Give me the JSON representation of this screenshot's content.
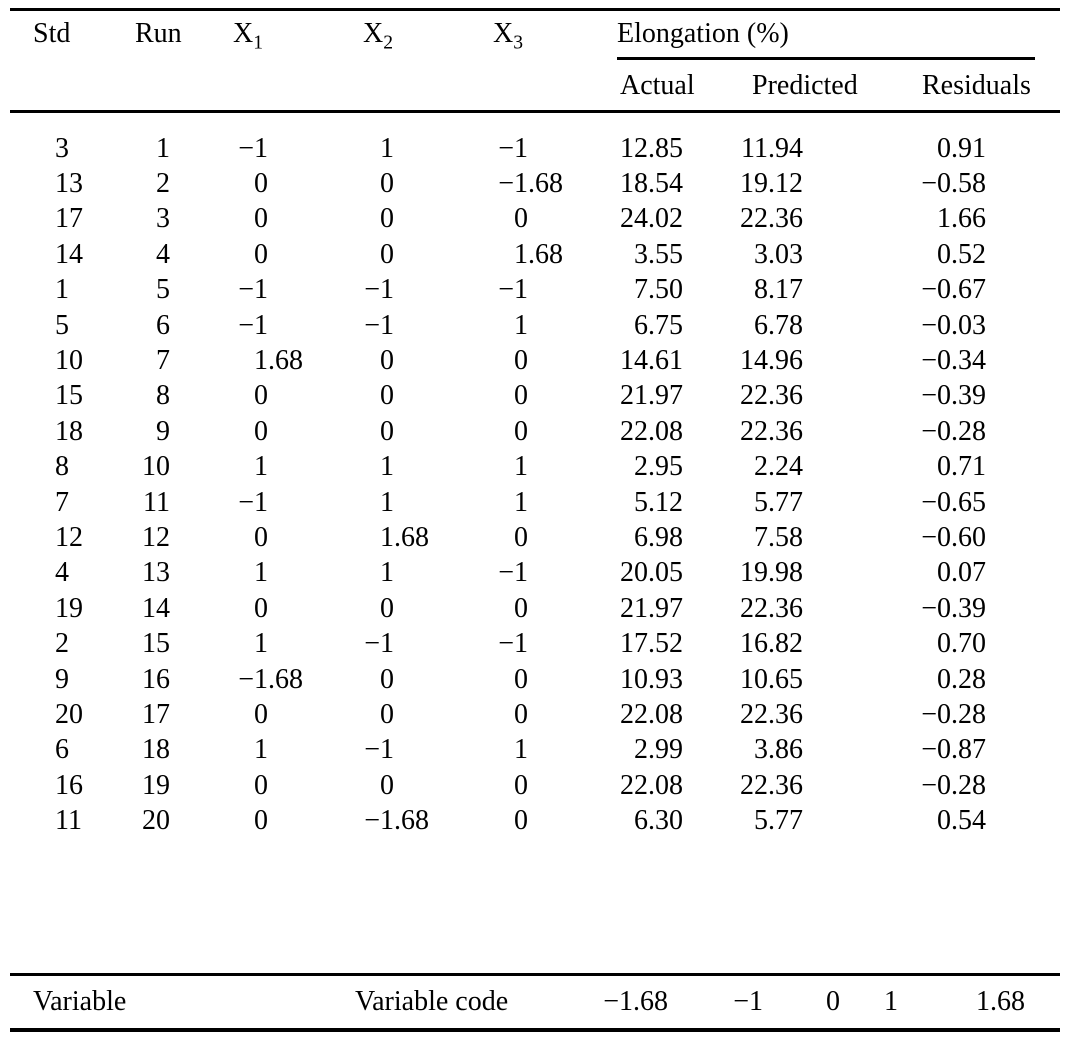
{
  "table": {
    "title_hint": "Central composite design runs with actual, predicted elongation and residuals",
    "headers": {
      "std": "Std",
      "run": "Run",
      "x1": {
        "base": "X",
        "sub": "1"
      },
      "x2": {
        "base": "X",
        "sub": "2"
      },
      "x3": {
        "base": "X",
        "sub": "3"
      },
      "elongation_group": "Elongation (%)",
      "actual": "Actual",
      "predicted": "Predicted",
      "residuals": "Residuals"
    },
    "rows": [
      [
        "3",
        "1",
        "−1",
        "1",
        "−1",
        "12.85",
        "11.94",
        "0.91"
      ],
      [
        "13",
        "2",
        "0",
        "0",
        "−1.68",
        "18.54",
        "19.12",
        "−0.58"
      ],
      [
        "17",
        "3",
        "0",
        "0",
        "0",
        "24.02",
        "22.36",
        "1.66"
      ],
      [
        "14",
        "4",
        "0",
        "0",
        "1.68",
        "3.55",
        "3.03",
        "0.52"
      ],
      [
        "1",
        "5",
        "−1",
        "−1",
        "−1",
        "7.50",
        "8.17",
        "−0.67"
      ],
      [
        "5",
        "6",
        "−1",
        "−1",
        "1",
        "6.75",
        "6.78",
        "−0.03"
      ],
      [
        "10",
        "7",
        "1.68",
        "0",
        "0",
        "14.61",
        "14.96",
        "−0.34"
      ],
      [
        "15",
        "8",
        "0",
        "0",
        "0",
        "21.97",
        "22.36",
        "−0.39"
      ],
      [
        "18",
        "9",
        "0",
        "0",
        "0",
        "22.08",
        "22.36",
        "−0.28"
      ],
      [
        "8",
        "10",
        "1",
        "1",
        "1",
        "2.95",
        "2.24",
        "0.71"
      ],
      [
        "7",
        "11",
        "−1",
        "1",
        "1",
        "5.12",
        "5.77",
        "−0.65"
      ],
      [
        "12",
        "12",
        "0",
        "1.68",
        "0",
        "6.98",
        "7.58",
        "−0.60"
      ],
      [
        "4",
        "13",
        "1",
        "1",
        "−1",
        "20.05",
        "19.98",
        "0.07"
      ],
      [
        "19",
        "14",
        "0",
        "0",
        "0",
        "21.97",
        "22.36",
        "−0.39"
      ],
      [
        "2",
        "15",
        "1",
        "−1",
        "−1",
        "17.52",
        "16.82",
        "0.70"
      ],
      [
        "9",
        "16",
        "−1.68",
        "0",
        "0",
        "10.93",
        "10.65",
        "0.28"
      ],
      [
        "20",
        "17",
        "0",
        "0",
        "0",
        "22.08",
        "22.36",
        "−0.28"
      ],
      [
        "6",
        "18",
        "1",
        "−1",
        "1",
        "2.99",
        "3.86",
        "−0.87"
      ],
      [
        "16",
        "19",
        "0",
        "0",
        "0",
        "22.08",
        "22.36",
        "−0.28"
      ],
      [
        "11",
        "20",
        "0",
        "−1.68",
        "0",
        "6.30",
        "5.77",
        "0.54"
      ]
    ]
  },
  "footer": {
    "variable_label": "Variable",
    "variable_code_label": "Variable code",
    "codes": [
      "−1.68",
      "−1",
      "0",
      "1",
      "1.68"
    ]
  }
}
